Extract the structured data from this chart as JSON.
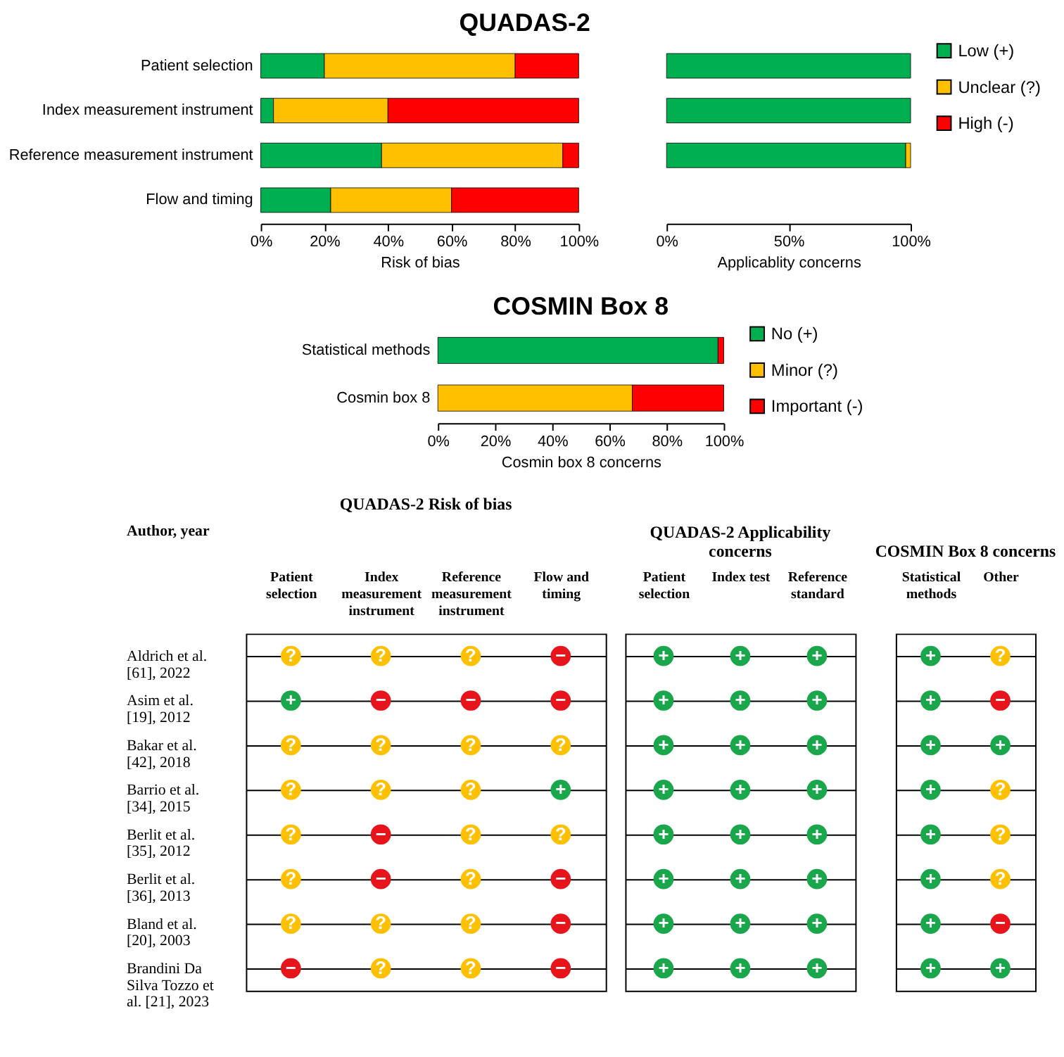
{
  "chart_data": [
    {
      "type": "bar",
      "orientation": "horizontal",
      "stacked": true,
      "title": "QUADAS-2",
      "xlabel": "Risk of bias",
      "categories": [
        "Patient selection",
        "Index measurement instrument",
        "Reference measurement instrument",
        "Flow and timing"
      ],
      "series": [
        {
          "color": "#00b050",
          "values": [
            20,
            4,
            38,
            22
          ]
        },
        {
          "color": "#ffc000",
          "values": [
            60,
            36,
            57,
            38
          ]
        },
        {
          "color": "#ff0000",
          "values": [
            20,
            60,
            5,
            40
          ]
        }
      ],
      "xlim": [
        0,
        100
      ],
      "xticks": [
        {
          "value": 0,
          "label": "0%"
        },
        {
          "value": 20,
          "label": "20%"
        },
        {
          "value": 40,
          "label": "40%"
        },
        {
          "value": 60,
          "label": "60%"
        },
        {
          "value": 80,
          "label": "80%"
        },
        {
          "value": 100,
          "label": "100%"
        }
      ]
    },
    {
      "type": "bar",
      "orientation": "horizontal",
      "stacked": true,
      "xlabel": "Applicablity concerns",
      "categories": [
        "Patient selection",
        "Index measurement instrument",
        "Reference measurement instrument",
        "Flow and timing"
      ],
      "tick_labels": "x",
      "legend": "right",
      "series": [
        {
          "name": "Low (+)",
          "color": "#00b050",
          "values": [
            100,
            100,
            98,
            null
          ]
        },
        {
          "name": "Unclear (?)",
          "color": "#ffc000",
          "values": [
            null,
            null,
            2,
            null
          ]
        },
        {
          "name": "High (-)",
          "color": "#ff0000",
          "values": [
            null,
            null,
            null,
            null
          ]
        }
      ],
      "xlim": [
        0,
        100
      ],
      "xticks": [
        {
          "value": 0,
          "label": "0%"
        },
        {
          "value": 50,
          "label": "50%"
        },
        {
          "value": 100,
          "label": "100%"
        }
      ]
    },
    {
      "type": "bar",
      "orientation": "horizontal",
      "stacked": true,
      "title": "COSMIN Box 8",
      "xlabel": "Cosmin box 8 concerns",
      "categories": [
        "Statistical methods",
        "Cosmin box 8"
      ],
      "legend": "right",
      "series": [
        {
          "name": "No (+)",
          "color": "#00b050",
          "values": [
            98,
            null
          ]
        },
        {
          "name": "Minor (?)",
          "color": "#ffc000",
          "values": [
            null,
            68
          ]
        },
        {
          "name": "Important (-)",
          "color": "#ff0000",
          "values": [
            2,
            32
          ]
        }
      ],
      "xlim": [
        0,
        100
      ],
      "xticks": [
        {
          "value": 0,
          "label": "0%"
        },
        {
          "value": 20,
          "label": "20%"
        },
        {
          "value": 40,
          "label": "40%"
        },
        {
          "value": 60,
          "label": "60%"
        },
        {
          "value": 80,
          "label": "80%"
        },
        {
          "value": 100,
          "label": "100%"
        }
      ]
    },
    {
      "type": "heatmap",
      "title": "QUADAS-2 Risk of bias",
      "ylabel": "Author, year",
      "grid": "y",
      "categories": [
        "Patient selection",
        "Index measurement instrument",
        "Reference measurement instrument",
        "Flow and timing"
      ],
      "y_categories": [
        "Aldrich et al. [61], 2022",
        "Asim et al. [19], 2012",
        "Bakar et al. [42], 2018",
        "Barrio et al. [34], 2015",
        "Berlit et al. [35], 2012",
        "Berlit et al. [36], 2013",
        "Bland et al. [20], 2003",
        "Brandini Da Silva Tozzo et al. [21], 2023"
      ],
      "cells": [
        [
          "?",
          "?",
          "?",
          "−"
        ],
        [
          "+",
          "−",
          "−",
          "−"
        ],
        [
          "?",
          "?",
          "?",
          "?"
        ],
        [
          "?",
          "?",
          "?",
          "+"
        ],
        [
          "?",
          "−",
          "?",
          "?"
        ],
        [
          "?",
          "−",
          "?",
          "−"
        ],
        [
          "?",
          "?",
          "?",
          "−"
        ],
        [
          "−",
          "?",
          "?",
          "−"
        ]
      ],
      "colors": [
        "#1aa64a",
        "#ffc000",
        "#e8141c"
      ]
    },
    {
      "type": "heatmap",
      "title": "QUADAS-2 Applicability concerns",
      "grid": "y",
      "tick_labels": "x",
      "categories": [
        "Patient selection",
        "Index test",
        "Reference standard"
      ],
      "y_categories": [
        null,
        null,
        null,
        null,
        null,
        null,
        null,
        null
      ],
      "cells": [
        [
          "+",
          "+",
          "+"
        ],
        [
          "+",
          "+",
          "+"
        ],
        [
          "+",
          "+",
          "+"
        ],
        [
          "+",
          "+",
          "+"
        ],
        [
          "+",
          "+",
          "+"
        ],
        [
          "+",
          "+",
          "+"
        ],
        [
          "+",
          "+",
          "+"
        ],
        [
          "+",
          "+",
          "+"
        ]
      ],
      "colors": [
        "#1aa64a"
      ]
    },
    {
      "type": "heatmap",
      "title": "COSMIN Box 8 concerns",
      "grid": "y",
      "tick_labels": "x",
      "categories": [
        "Statistical methods",
        "Other"
      ],
      "y_categories": [
        null,
        null,
        null,
        null,
        null,
        null,
        null,
        null
      ],
      "cells": [
        [
          "+",
          "?"
        ],
        [
          "+",
          "−"
        ],
        [
          "+",
          "+"
        ],
        [
          "+",
          "?"
        ],
        [
          "+",
          "?"
        ],
        [
          "+",
          "?"
        ],
        [
          "+",
          "−"
        ],
        [
          "+",
          "+"
        ]
      ],
      "colors": [
        "#1aa64a",
        "#ffc000",
        "#e8141c"
      ]
    }
  ]
}
